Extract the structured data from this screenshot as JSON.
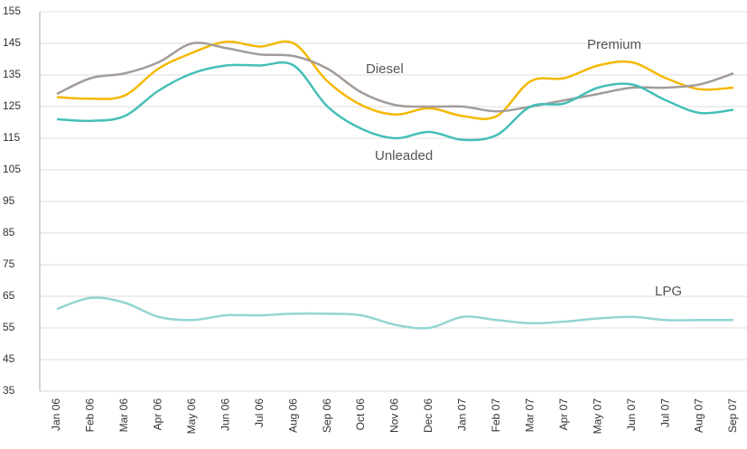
{
  "chart_data": {
    "type": "line",
    "categories": [
      "Jan 06",
      "Feb 06",
      "Mar 06",
      "Apr 06",
      "May 06",
      "Jun 06",
      "Jul 06",
      "Aug 06",
      "Sep 06",
      "Oct 06",
      "Nov 06",
      "Dec 06",
      "Jan 07",
      "Feb 07",
      "Mar 07",
      "Apr 07",
      "May 07",
      "Jun 07",
      "Jul 07",
      "Aug 07",
      "Sep 07"
    ],
    "series": [
      {
        "name": "Premium",
        "color": "#f5b800",
        "values": [
          128,
          127.5,
          128.5,
          137,
          142,
          145.5,
          144,
          145,
          133,
          125.5,
          122.5,
          124.5,
          122,
          122,
          133,
          134,
          138,
          139,
          134,
          130.5,
          131
        ]
      },
      {
        "name": "Diesel",
        "color": "#a39c98",
        "values": [
          129,
          134,
          135.5,
          139,
          145,
          143.5,
          141.5,
          141,
          137,
          129.5,
          125.5,
          125,
          125,
          123.5,
          125,
          127,
          129,
          131,
          131,
          132,
          135.5
        ]
      },
      {
        "name": "Unleaded",
        "color": "#45bfb8",
        "values": [
          121,
          120.5,
          122,
          130,
          135.5,
          138,
          138,
          138,
          125,
          118,
          115,
          117,
          114.5,
          116,
          125,
          126,
          131,
          132,
          127,
          123,
          124
        ]
      },
      {
        "name": "LPG",
        "color": "#93d5d2",
        "values": [
          61,
          64.5,
          63,
          58.5,
          57.5,
          59,
          59,
          59.5,
          59.5,
          59,
          56,
          55,
          58.5,
          57.5,
          56.5,
          57,
          58,
          58.5,
          57.5,
          57.5,
          57.5
        ]
      }
    ],
    "ylim": [
      35,
      155
    ],
    "yticks": [
      35,
      45,
      55,
      65,
      75,
      85,
      95,
      105,
      115,
      125,
      135,
      145,
      155
    ],
    "grid": true
  }
}
